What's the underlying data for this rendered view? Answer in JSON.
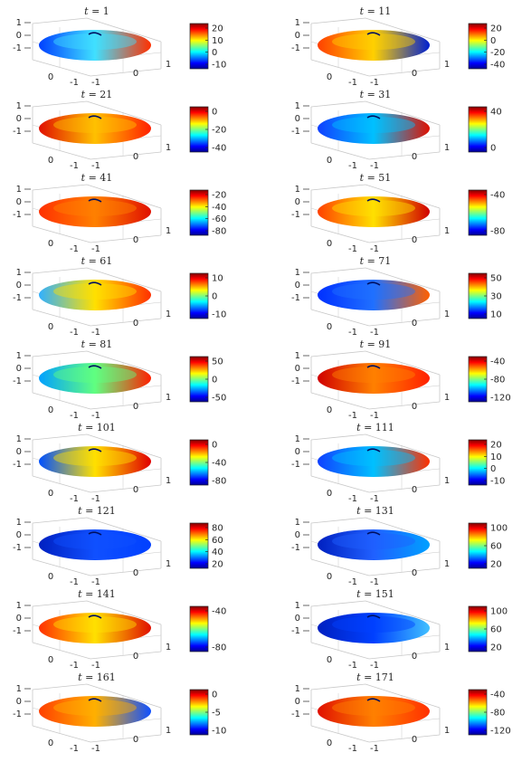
{
  "chart_data": {
    "type": "heatmap",
    "surface": "flattened ellipsoid, colour-mapped (jet)",
    "grid": true,
    "colormap": "jet",
    "colorbar_placement": "right of each panel",
    "axes": {
      "x_ticks": [
        "0",
        "-1"
      ],
      "y_ticks": [
        "-1",
        "0",
        "1"
      ],
      "z_ticks": [
        "1",
        "0",
        "-1"
      ]
    },
    "panels": [
      {
        "title_var": "t",
        "title_eq": " = ",
        "title_num": "1",
        "colorbar_ticks": [
          "20",
          "10",
          "0",
          "-10"
        ]
      },
      {
        "title_var": "t",
        "title_eq": " = ",
        "title_num": "11",
        "colorbar_ticks": [
          "20",
          "0",
          "-20",
          "-40"
        ]
      },
      {
        "title_var": "t",
        "title_eq": " = ",
        "title_num": "21",
        "colorbar_ticks": [
          "0",
          "-20",
          "-40"
        ]
      },
      {
        "title_var": "t",
        "title_eq": " = ",
        "title_num": "31",
        "colorbar_ticks": [
          "40",
          "0"
        ]
      },
      {
        "title_var": "t",
        "title_eq": " = ",
        "title_num": "41",
        "colorbar_ticks": [
          "-20",
          "-40",
          "-60",
          "-80"
        ]
      },
      {
        "title_var": "t",
        "title_eq": " = ",
        "title_num": "51",
        "colorbar_ticks": [
          "-40",
          "-80"
        ]
      },
      {
        "title_var": "t",
        "title_eq": " = ",
        "title_num": "61",
        "colorbar_ticks": [
          "10",
          "0",
          "-10"
        ]
      },
      {
        "title_var": "t",
        "title_eq": " = ",
        "title_num": "71",
        "colorbar_ticks": [
          "50",
          "30",
          "10"
        ]
      },
      {
        "title_var": "t",
        "title_eq": " = ",
        "title_num": "81",
        "colorbar_ticks": [
          "50",
          "0",
          "-50"
        ]
      },
      {
        "title_var": "t",
        "title_eq": " = ",
        "title_num": "91",
        "colorbar_ticks": [
          "-40",
          "-80",
          "-120"
        ]
      },
      {
        "title_var": "t",
        "title_eq": " = ",
        "title_num": "101",
        "colorbar_ticks": [
          "0",
          "-40",
          "-80"
        ]
      },
      {
        "title_var": "t",
        "title_eq": " = ",
        "title_num": "111",
        "colorbar_ticks": [
          "20",
          "10",
          "0",
          "-10"
        ]
      },
      {
        "title_var": "t",
        "title_eq": " = ",
        "title_num": "121",
        "colorbar_ticks": [
          "80",
          "60",
          "40",
          "20"
        ]
      },
      {
        "title_var": "t",
        "title_eq": " = ",
        "title_num": "131",
        "colorbar_ticks": [
          "100",
          "60",
          "20"
        ]
      },
      {
        "title_var": "t",
        "title_eq": " = ",
        "title_num": "141",
        "colorbar_ticks": [
          "-40",
          "-80"
        ]
      },
      {
        "title_var": "t",
        "title_eq": " = ",
        "title_num": "151",
        "colorbar_ticks": [
          "100",
          "60",
          "20"
        ]
      },
      {
        "title_var": "t",
        "title_eq": " = ",
        "title_num": "161",
        "colorbar_ticks": [
          "0",
          "-5",
          "-10"
        ]
      },
      {
        "title_var": "t",
        "title_eq": " = ",
        "title_num": "171",
        "colorbar_ticks": [
          "-40",
          "-80",
          "-120"
        ]
      }
    ]
  }
}
